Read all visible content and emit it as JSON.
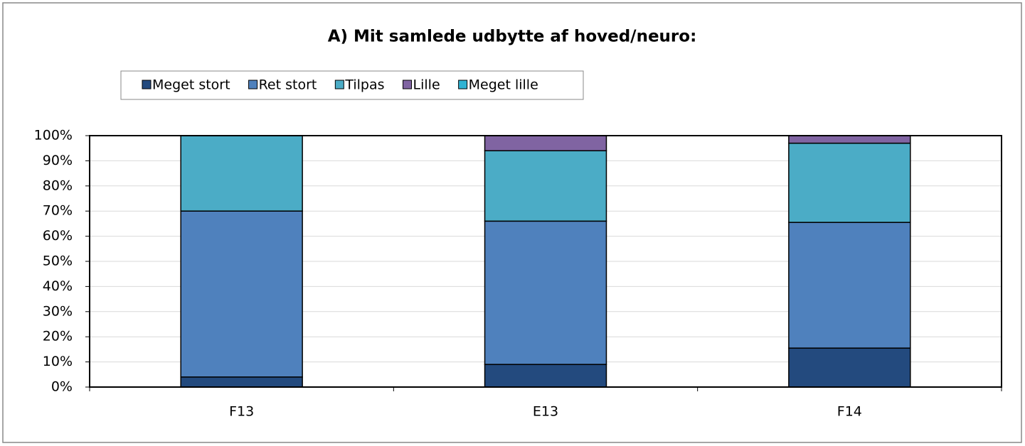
{
  "chart_data": {
    "type": "stacked_bar",
    "title": "A) Mit samlede udbytte af hoved/neuro:",
    "categories": [
      "F13",
      "E13",
      "F14"
    ],
    "series": [
      {
        "name": "Meget stort",
        "color": "#234a7e",
        "values": [
          4,
          9,
          15.5
        ]
      },
      {
        "name": "Ret stort",
        "color": "#4f81bd",
        "values": [
          66,
          57,
          50
        ]
      },
      {
        "name": "Tilpas",
        "color": "#4bacc6",
        "values": [
          30,
          28,
          31.5
        ]
      },
      {
        "name": "Lille",
        "color": "#8064a2",
        "values": [
          0,
          6,
          3
        ]
      },
      {
        "name": "Meget lille",
        "color": "#2fb3d3",
        "values": [
          0,
          0,
          0
        ]
      }
    ],
    "ylim": [
      0,
      100
    ],
    "yticks": [
      {
        "value": 0,
        "label": "0%"
      },
      {
        "value": 10,
        "label": "10%"
      },
      {
        "value": 20,
        "label": "20%"
      },
      {
        "value": 30,
        "label": "30%"
      },
      {
        "value": 40,
        "label": "40%"
      },
      {
        "value": 50,
        "label": "50%"
      },
      {
        "value": 60,
        "label": "60%"
      },
      {
        "value": 70,
        "label": "70%"
      },
      {
        "value": 80,
        "label": "80%"
      },
      {
        "value": 90,
        "label": "90%"
      },
      {
        "value": 100,
        "label": "100%"
      }
    ],
    "grid": true,
    "legend": "top"
  }
}
